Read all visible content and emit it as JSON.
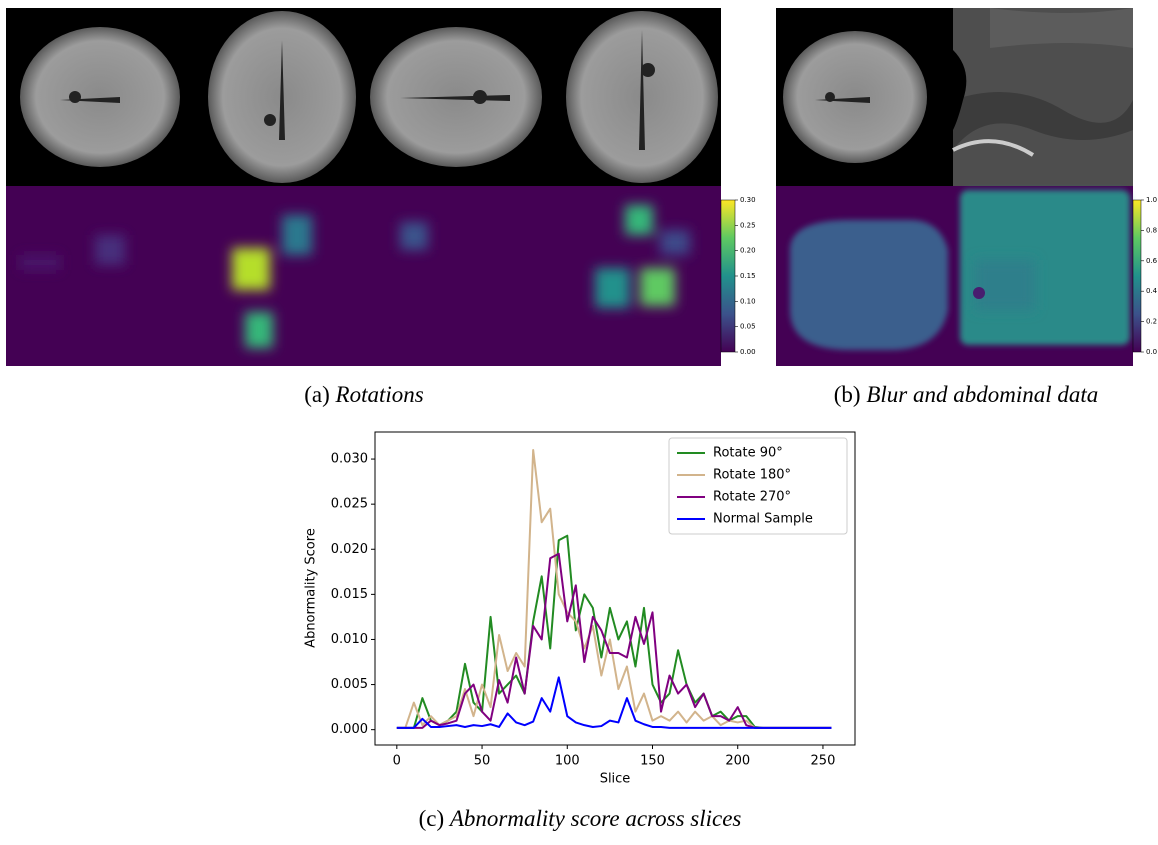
{
  "panel_a": {
    "label": "(a)",
    "caption": "Rotations",
    "colorbar_range": [
      0,
      0.3
    ],
    "colorbar_ticks": [
      {
        "value": 0,
        "label": "0.00"
      },
      {
        "value": 0.05,
        "label": "0.05"
      },
      {
        "value": 0.1,
        "label": "0.10"
      },
      {
        "value": 0.15,
        "label": "0.15"
      },
      {
        "value": 0.2,
        "label": "0.20"
      },
      {
        "value": 0.25,
        "label": "0.25"
      },
      {
        "value": 0.3,
        "label": "0.30"
      }
    ]
  },
  "panel_b": {
    "label": "(b)",
    "caption": "Blur and abdominal data",
    "colorbar_range": [
      0,
      1
    ],
    "colorbar_ticks": [
      {
        "value": 0,
        "label": "0.0"
      },
      {
        "value": 0.2,
        "label": "0.2"
      },
      {
        "value": 0.4,
        "label": "0.4"
      },
      {
        "value": 0.6,
        "label": "0.6"
      },
      {
        "value": 0.8,
        "label": "0.8"
      },
      {
        "value": 1,
        "label": "1.0"
      }
    ]
  },
  "panel_c": {
    "label": "(c)",
    "caption": "Abnormality score across slices"
  },
  "chart_data": {
    "type": "line",
    "xlabel": "Slice",
    "ylabel": "Abnormality Score",
    "x": [
      0,
      5,
      10,
      15,
      20,
      25,
      30,
      35,
      40,
      45,
      50,
      55,
      60,
      65,
      70,
      75,
      80,
      85,
      90,
      95,
      100,
      105,
      110,
      115,
      120,
      125,
      130,
      135,
      140,
      145,
      150,
      155,
      160,
      165,
      170,
      175,
      180,
      185,
      190,
      195,
      200,
      205,
      210,
      215,
      220,
      225,
      230,
      235,
      240,
      245,
      250,
      255
    ],
    "series": [
      {
        "name": "Rotate 90°",
        "color": "#228b22",
        "values": [
          0.0002,
          0.0002,
          0.0002,
          0.0035,
          0.001,
          0.0005,
          0.001,
          0.002,
          0.0073,
          0.003,
          0.002,
          0.0125,
          0.004,
          0.005,
          0.006,
          0.004,
          0.012,
          0.017,
          0.009,
          0.021,
          0.0215,
          0.011,
          0.015,
          0.0135,
          0.008,
          0.0135,
          0.01,
          0.012,
          0.007,
          0.0135,
          0.005,
          0.003,
          0.004,
          0.0088,
          0.005,
          0.003,
          0.004,
          0.0015,
          0.002,
          0.001,
          0.0015,
          0.0015,
          0.0003,
          0.0002,
          0.0002,
          0.0002,
          0.0002,
          0.0002,
          0.0002,
          0.0002,
          0.0002,
          0.0002
        ]
      },
      {
        "name": "Rotate 180°",
        "color": "#d2b48c",
        "values": [
          0.0002,
          0.0002,
          0.003,
          0.0005,
          0.0015,
          0.0005,
          0.001,
          0.0015,
          0.0045,
          0.0015,
          0.005,
          0.0025,
          0.0105,
          0.0065,
          0.0085,
          0.007,
          0.031,
          0.023,
          0.0245,
          0.015,
          0.013,
          0.012,
          0.009,
          0.0115,
          0.006,
          0.01,
          0.0045,
          0.007,
          0.002,
          0.004,
          0.001,
          0.0015,
          0.001,
          0.002,
          0.0008,
          0.002,
          0.001,
          0.0015,
          0.0005,
          0.001,
          0.0008,
          0.001,
          0.0002,
          0.0002,
          0.0002,
          0.0002,
          0.0002,
          0.0002,
          0.0002,
          0.0002,
          0.0002,
          0.0002
        ]
      },
      {
        "name": "Rotate 270°",
        "color": "#800080",
        "values": [
          0.0002,
          0.0002,
          0.0002,
          0.0002,
          0.001,
          0.0005,
          0.0007,
          0.001,
          0.004,
          0.005,
          0.002,
          0.001,
          0.0055,
          0.003,
          0.008,
          0.004,
          0.0115,
          0.01,
          0.019,
          0.0195,
          0.012,
          0.016,
          0.0075,
          0.0125,
          0.011,
          0.0085,
          0.0085,
          0.008,
          0.0125,
          0.0095,
          0.013,
          0.002,
          0.006,
          0.004,
          0.005,
          0.0025,
          0.004,
          0.0015,
          0.0015,
          0.001,
          0.0025,
          0.0005,
          0.0002,
          0.0002,
          0.0002,
          0.0002,
          0.0002,
          0.0002,
          0.0002,
          0.0002,
          0.0002,
          0.0002
        ]
      },
      {
        "name": "Normal Sample",
        "color": "#0000ff",
        "values": [
          0.0002,
          0.0002,
          0.0002,
          0.0012,
          0.0003,
          0.0003,
          0.0004,
          0.0005,
          0.0003,
          0.0005,
          0.0004,
          0.0006,
          0.0003,
          0.0018,
          0.0008,
          0.0005,
          0.0009,
          0.0035,
          0.002,
          0.0058,
          0.0015,
          0.0008,
          0.0005,
          0.0003,
          0.0004,
          0.001,
          0.0008,
          0.0035,
          0.001,
          0.0006,
          0.0003,
          0.0003,
          0.0002,
          0.0002,
          0.0002,
          0.0002,
          0.0002,
          0.0002,
          0.0002,
          0.0002,
          0.0002,
          0.0002,
          0.0002,
          0.0002,
          0.0002,
          0.0002,
          0.0002,
          0.0002,
          0.0002,
          0.0002,
          0.0002,
          0.0002
        ]
      }
    ],
    "xlim": [
      -12.8,
      268.8
    ],
    "ylim": [
      -0.0017,
      0.033
    ],
    "xticks": [
      0,
      50,
      100,
      150,
      200,
      250
    ],
    "yticks": [
      {
        "value": 0,
        "label": "0.000"
      },
      {
        "value": 0.005,
        "label": "0.005"
      },
      {
        "value": 0.01,
        "label": "0.010"
      },
      {
        "value": 0.015,
        "label": "0.015"
      },
      {
        "value": 0.02,
        "label": "0.020"
      },
      {
        "value": 0.025,
        "label": "0.025"
      },
      {
        "value": 0.03,
        "label": "0.030"
      }
    ],
    "legend": "upper right"
  }
}
